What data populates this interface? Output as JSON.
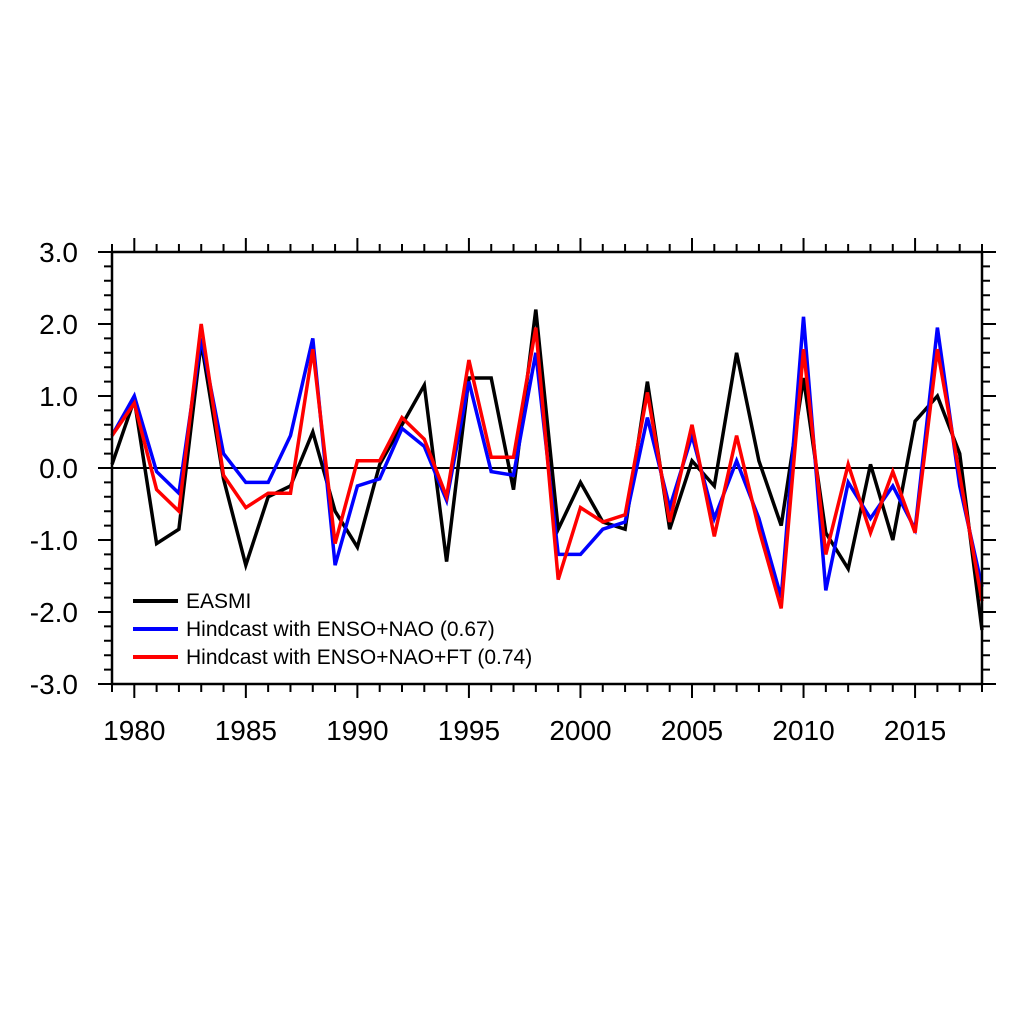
{
  "figure": {
    "background_color": "#ffffff",
    "axis_color": "#000000",
    "title": ""
  },
  "chart_data": {
    "type": "line",
    "title": "",
    "xlabel": "",
    "ylabel": "",
    "xlim": [
      1979,
      2018
    ],
    "ylim": [
      -3.0,
      3.0
    ],
    "grid": false,
    "zero_line": true,
    "legend_position": "inside-bottom-left",
    "x_major_ticks": [
      1980,
      1985,
      1990,
      1995,
      2000,
      2005,
      2010,
      2015
    ],
    "x_tick_labels": [
      "1980",
      "1985",
      "1990",
      "1995",
      "2000",
      "2005",
      "2010",
      "2015"
    ],
    "x_minor_step": 1,
    "y_major_ticks": [
      3.0,
      2.0,
      1.0,
      0.0,
      -1.0,
      -2.0,
      -3.0
    ],
    "y_tick_labels": [
      "3.0",
      "2.0",
      "1.0",
      "0.0",
      "-1.0",
      "-2.0",
      "-3.0"
    ],
    "y_minor_step": 0.2,
    "x": [
      1979,
      1980,
      1981,
      1982,
      1983,
      1984,
      1985,
      1986,
      1987,
      1988,
      1989,
      1990,
      1991,
      1992,
      1993,
      1994,
      1995,
      1996,
      1997,
      1998,
      1999,
      2000,
      2001,
      2002,
      2003,
      2004,
      2005,
      2006,
      2007,
      2008,
      2009,
      2010,
      2011,
      2012,
      2013,
      2014,
      2015,
      2016,
      2017,
      2018
    ],
    "series": [
      {
        "name": "EASMI",
        "color": "#000000",
        "values": [
          0.05,
          0.95,
          -1.05,
          -0.85,
          1.75,
          -0.15,
          -1.35,
          -0.4,
          -0.25,
          0.5,
          -0.6,
          -1.1,
          0.05,
          0.6,
          1.15,
          -1.3,
          1.25,
          1.25,
          -0.3,
          2.2,
          -0.85,
          -0.2,
          -0.75,
          -0.85,
          1.2,
          -0.85,
          0.1,
          -0.25,
          1.6,
          0.1,
          -0.8,
          1.25,
          -0.9,
          -1.4,
          0.05,
          -1.0,
          0.65,
          1.0,
          0.2,
          -2.25
        ]
      },
      {
        "name": "Hindcast with ENSO+NAO (0.67)",
        "color": "#0000ff",
        "values": [
          0.45,
          1.0,
          -0.05,
          -0.35,
          1.8,
          0.2,
          -0.2,
          -0.2,
          0.45,
          1.8,
          -1.35,
          -0.25,
          -0.15,
          0.55,
          0.3,
          -0.45,
          1.2,
          -0.05,
          -0.1,
          1.6,
          -1.2,
          -1.2,
          -0.85,
          -0.75,
          0.7,
          -0.55,
          0.45,
          -0.7,
          0.1,
          -0.7,
          -1.8,
          2.1,
          -1.7,
          -0.2,
          -0.7,
          -0.25,
          -0.85,
          1.95,
          -0.25,
          -1.65
        ]
      },
      {
        "name": "Hindcast with ENSO+NAO+FT (0.74)",
        "color": "#ff0000",
        "values": [
          0.45,
          0.9,
          -0.3,
          -0.6,
          2.0,
          -0.1,
          -0.55,
          -0.35,
          -0.35,
          1.65,
          -1.05,
          0.1,
          0.1,
          0.7,
          0.4,
          -0.4,
          1.5,
          0.15,
          0.15,
          1.95,
          -1.55,
          -0.55,
          -0.75,
          -0.65,
          1.05,
          -0.75,
          0.6,
          -0.95,
          0.45,
          -0.85,
          -1.95,
          1.65,
          -1.2,
          0.05,
          -0.9,
          -0.05,
          -0.9,
          1.65,
          -0.1,
          -1.85
        ]
      }
    ]
  },
  "legend": {
    "items": [
      {
        "label": "EASMI",
        "color": "#000000"
      },
      {
        "label": "Hindcast with ENSO+NAO (0.67)",
        "color": "#0000ff"
      },
      {
        "label": "Hindcast with ENSO+NAO+FT (0.74)",
        "color": "#ff0000"
      }
    ]
  }
}
